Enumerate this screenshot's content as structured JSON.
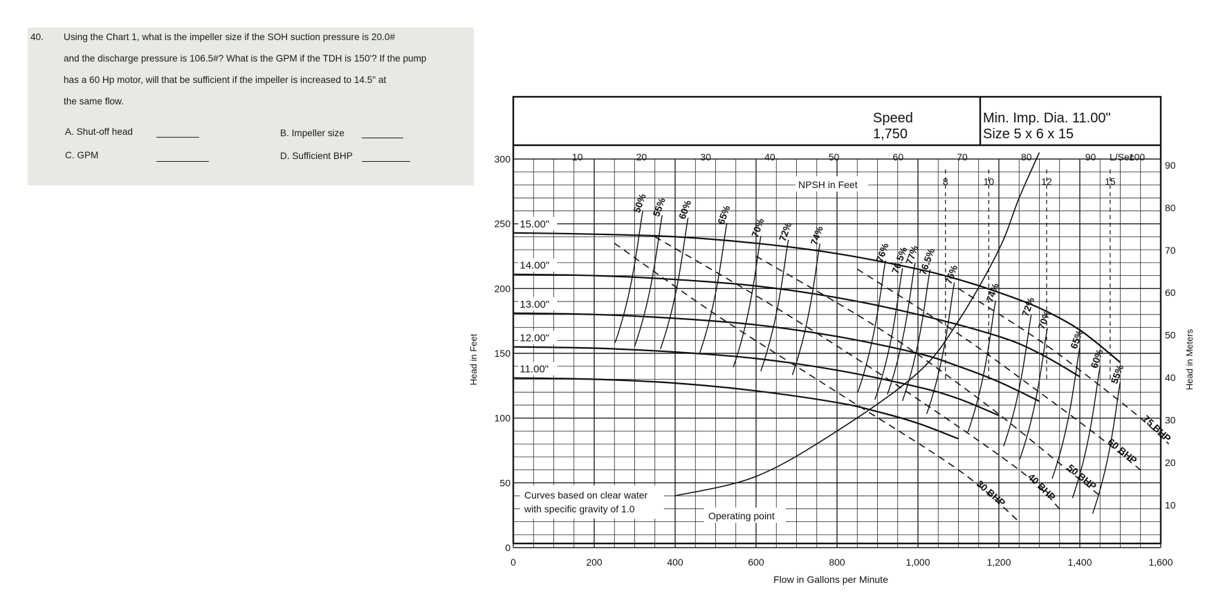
{
  "question": {
    "number": "40.",
    "lines": [
      "Using the Chart 1, what is the impeller size if the SOH suction pressure is 20.0#",
      "and the discharge pressure is 106.5#? What is the GPM if the TDH is 150'?  If the pump",
      "has a 60 Hp motor, will that be sufficient if the impeller is increased to 14.5\" at",
      "the same flow."
    ],
    "answers": [
      {
        "label": "A. Shut-off head",
        "value": ""
      },
      {
        "label": "B. Impeller size",
        "value": ""
      },
      {
        "label": "C.  GPM",
        "value": ""
      },
      {
        "label": "D.  Sufficient BHP",
        "value": ""
      }
    ]
  },
  "chart_data": {
    "type": "line",
    "title": "",
    "header": {
      "speed_label": "Speed",
      "speed_value": "1,750",
      "min_imp": "Min. Imp. Dia. 11.00\"",
      "size": "Size 5 x 6 x 15"
    },
    "xlabel": "Flow in Gallons per Minute",
    "ylabel": "Head in Feet",
    "x2label": "L/Sec",
    "y2label": "Head in Meters",
    "xlim": [
      0,
      1600
    ],
    "ylim": [
      0,
      300
    ],
    "x_ticks": [
      "0",
      "200",
      "400",
      "600",
      "800",
      "1,000",
      "1,200",
      "1,400",
      "1,600"
    ],
    "y_ticks": [
      "0",
      "50",
      "100",
      "150",
      "200",
      "250",
      "300"
    ],
    "x2_ticks": [
      "10",
      "20",
      "30",
      "40",
      "50",
      "60",
      "70",
      "80",
      "90",
      "100"
    ],
    "y2_ticks": [
      "10",
      "20",
      "30",
      "40",
      "50",
      "60",
      "70",
      "80",
      "90"
    ],
    "grid": true,
    "impeller_curves": [
      {
        "name": "15.00\"",
        "x": [
          0,
          200,
          400,
          600,
          800,
          1000,
          1100,
          1200,
          1300,
          1400,
          1500
        ],
        "y": [
          243,
          242,
          240,
          235,
          227,
          215,
          207,
          197,
          185,
          168,
          143
        ]
      },
      {
        "name": "14.00\"",
        "x": [
          0,
          200,
          400,
          600,
          800,
          1000,
          1200,
          1300,
          1400
        ],
        "y": [
          211,
          210,
          207,
          202,
          193,
          180,
          163,
          150,
          132
        ]
      },
      {
        "name": "13.00\"",
        "x": [
          0,
          200,
          400,
          600,
          800,
          1000,
          1100,
          1200,
          1300
        ],
        "y": [
          181,
          180,
          177,
          172,
          163,
          150,
          140,
          128,
          113
        ]
      },
      {
        "name": "12.00\"",
        "x": [
          0,
          200,
          400,
          600,
          800,
          1000,
          1100,
          1200
        ],
        "y": [
          155,
          154,
          151,
          146,
          137,
          124,
          115,
          102
        ]
      },
      {
        "name": "11.00\"",
        "x": [
          0,
          200,
          400,
          600,
          800,
          900,
          1000,
          1100
        ],
        "y": [
          131,
          130,
          127,
          121,
          112,
          105,
          96,
          84
        ]
      }
    ],
    "efficiency_labels": [
      "50%",
      "55%",
      "60%",
      "65%",
      "70%",
      "72%",
      "74%",
      "76%",
      "76.5%",
      "77%",
      "76.5%",
      "76%",
      "74%",
      "72%",
      "70%",
      "65%",
      "60%",
      "55%"
    ],
    "efficiency_points": [
      {
        "label": "50%",
        "x": 320,
        "y": 265
      },
      {
        "label": "55%",
        "x": 368,
        "y": 262
      },
      {
        "label": "60%",
        "x": 432,
        "y": 260
      },
      {
        "label": "65%",
        "x": 528,
        "y": 256
      },
      {
        "label": "70%",
        "x": 612,
        "y": 246
      },
      {
        "label": "72%",
        "x": 680,
        "y": 243
      },
      {
        "label": "74%",
        "x": 758,
        "y": 240
      },
      {
        "label": "76%",
        "x": 920,
        "y": 227
      },
      {
        "label": "76.5%",
        "x": 962,
        "y": 221
      },
      {
        "label": "77%",
        "x": 993,
        "y": 225
      },
      {
        "label": "76.5%",
        "x": 1030,
        "y": 220
      },
      {
        "label": "76%",
        "x": 1090,
        "y": 210
      },
      {
        "label": "74%",
        "x": 1192,
        "y": 196
      },
      {
        "label": "72%",
        "x": 1280,
        "y": 185
      },
      {
        "label": "70%",
        "x": 1320,
        "y": 175
      },
      {
        "label": "65%",
        "x": 1400,
        "y": 160
      },
      {
        "label": "60%",
        "x": 1450,
        "y": 145
      },
      {
        "label": "55%",
        "x": 1500,
        "y": 133
      }
    ],
    "bhp_curves": [
      {
        "name": "30 BHP",
        "x": [
          250,
          500,
          800,
          1100,
          1250
        ],
        "y": [
          235,
          180,
          120,
          60,
          20
        ]
      },
      {
        "name": "40 BHP",
        "x": [
          350,
          650,
          950,
          1250,
          1350
        ],
        "y": [
          240,
          185,
          125,
          60,
          30
        ]
      },
      {
        "name": "50 BHP",
        "x": [
          600,
          900,
          1150,
          1350,
          1450
        ],
        "y": [
          225,
          170,
          115,
          65,
          40
        ]
      },
      {
        "name": "60 BHP",
        "x": [
          850,
          1100,
          1300,
          1450,
          1550
        ],
        "y": [
          215,
          165,
          120,
          85,
          60
        ]
      },
      {
        "name": "75 BHP",
        "x": [
          1100,
          1300,
          1450,
          1550,
          1620
        ],
        "y": [
          200,
          160,
          125,
          100,
          80
        ]
      }
    ],
    "npsh": {
      "label": "NPSH in Feet",
      "markers": [
        "8",
        "10",
        "12",
        "15"
      ],
      "curve_x": [
        400,
        600,
        800,
        1000,
        1100,
        1200,
        1250,
        1300
      ],
      "curve_y": [
        40,
        55,
        90,
        135,
        175,
        230,
        270,
        305
      ]
    },
    "annotations": [
      "Curves based on clear water",
      "with specific gravity of 1.0",
      "Operating point"
    ]
  }
}
